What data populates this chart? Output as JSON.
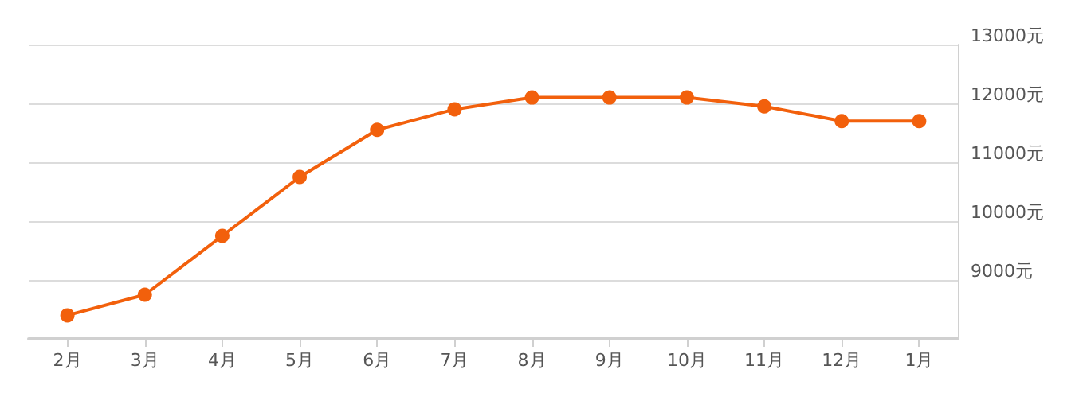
{
  "chart_data": {
    "type": "line",
    "categories": [
      "2月",
      "3月",
      "4月",
      "5月",
      "6月",
      "7月",
      "8月",
      "9月",
      "10月",
      "11月",
      "12月",
      "1月"
    ],
    "series": [
      {
        "color": "#f2600c",
        "values": [
          8400,
          8750,
          9750,
          10750,
          11550,
          11900,
          12100,
          12100,
          12100,
          11950,
          11700,
          11700
        ]
      }
    ],
    "ylim": [
      8000,
      13000
    ],
    "yticks": [
      {
        "value": 8000,
        "label": null
      },
      {
        "value": 9000,
        "label": "9000元"
      },
      {
        "value": 10000,
        "label": "10000元"
      },
      {
        "value": 11000,
        "label": "11000元"
      },
      {
        "value": 12000,
        "label": "12000元"
      },
      {
        "value": 13000,
        "label": "13000元"
      }
    ],
    "grid": "y",
    "marker": "circle",
    "line_style": "solid"
  }
}
